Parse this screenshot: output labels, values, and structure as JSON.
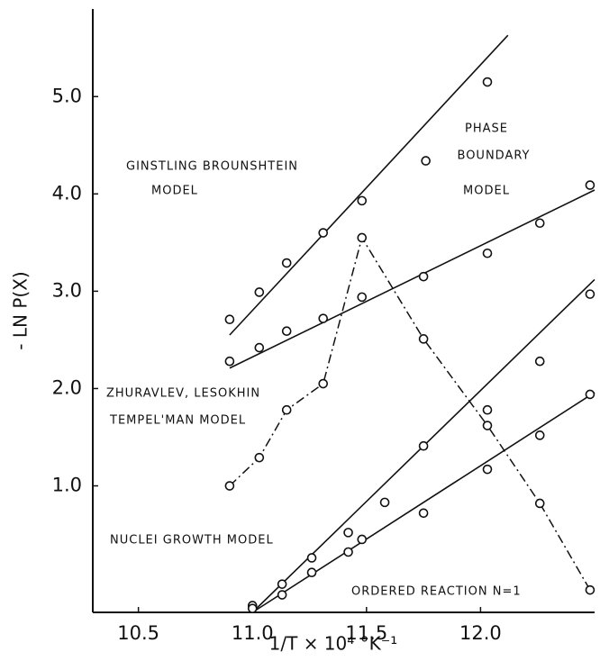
{
  "chart_data": {
    "type": "scatter",
    "x_label": "1/T × 10⁴  °K⁻¹",
    "y_label": "- LN P(X)",
    "xlim": [
      10.3,
      12.5
    ],
    "ylim": [
      -0.3,
      5.9
    ],
    "xticks": [
      10.5,
      {
        "value": 11.0,
        "label": "11.0"
      },
      11.5,
      {
        "value": 12.0,
        "label": "12.0"
      }
    ],
    "yticks": [
      {
        "value": 1.0,
        "label": "1.0"
      },
      {
        "value": 2.0,
        "label": "2.0"
      },
      {
        "value": 3.0,
        "label": "3.0"
      },
      {
        "value": 4.0,
        "label": "4.0"
      },
      {
        "value": 5.0,
        "label": "5.0"
      }
    ],
    "color": "#111111",
    "series": [
      {
        "x": [
          10.9,
          11.03,
          11.15,
          11.31,
          11.48,
          11.76,
          12.03
        ],
        "values": [
          2.71,
          2.99,
          3.29,
          3.6,
          3.93,
          4.34,
          5.15
        ],
        "style": "solid",
        "fit_x": [
          10.9,
          12.12
        ],
        "fit_y": [
          2.55,
          5.63
        ]
      },
      {
        "x": [
          10.9,
          11.03,
          11.15,
          11.31,
          11.48,
          11.75,
          12.03,
          12.26,
          12.48
        ],
        "values": [
          2.28,
          2.42,
          2.59,
          2.72,
          2.94,
          3.15,
          3.39,
          3.7,
          4.09
        ],
        "style": "solid",
        "fit_x": [
          10.9,
          12.5
        ],
        "fit_y": [
          2.21,
          4.04
        ]
      },
      {
        "x": [
          10.9,
          11.03,
          11.15,
          11.31,
          11.48,
          11.75,
          12.03,
          12.26,
          12.48
        ],
        "values": [
          1.0,
          1.29,
          1.78,
          2.05,
          3.55,
          2.51,
          1.62,
          0.82,
          -0.07
        ],
        "style": "dashdot"
      },
      {
        "x": [
          11.0,
          11.13,
          11.26,
          11.42,
          11.58,
          11.75,
          12.03,
          12.26,
          12.48
        ],
        "values": [
          -0.23,
          -0.01,
          0.26,
          0.52,
          0.83,
          1.41,
          1.78,
          2.28,
          2.97
        ],
        "style": "solid",
        "fit_x": [
          11.0,
          12.5
        ],
        "fit_y": [
          -0.3,
          3.12
        ]
      },
      {
        "x": [
          11.0,
          11.13,
          11.26,
          11.42,
          11.48,
          11.75,
          12.03,
          12.26,
          12.48
        ],
        "values": [
          -0.26,
          -0.12,
          0.11,
          0.32,
          0.45,
          0.72,
          1.17,
          1.52,
          1.94
        ],
        "style": "solid",
        "fit_x": [
          11.0,
          12.5
        ],
        "fit_y": [
          -0.3,
          1.96
        ]
      }
    ],
    "annotations": [
      "GINSTLING BROUNSHTEIN",
      "MODEL",
      "PHASE",
      "BOUNDARY",
      "MODEL",
      "ZHURAVLEV, LESOKHIN",
      "TEMPEL'MAN MODEL",
      "NUCLEI GROWTH MODEL",
      "ORDERED REACTION  N=1"
    ]
  }
}
